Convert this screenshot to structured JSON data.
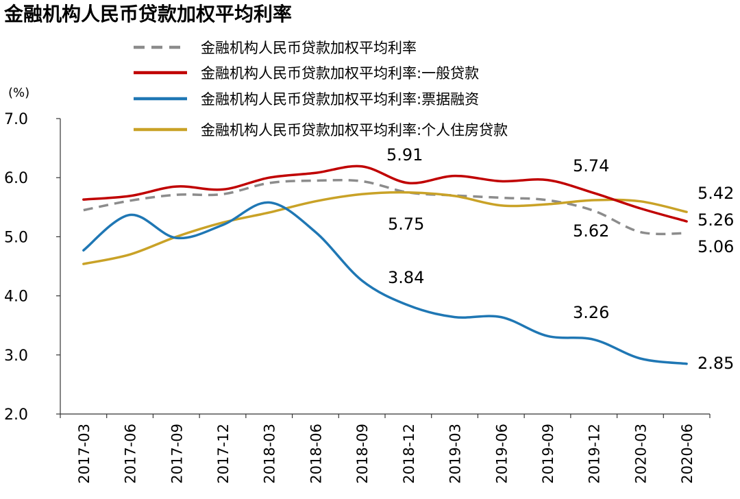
{
  "chart_data": {
    "type": "line",
    "title": "金融机构人民币贷款加权平均利率",
    "unit_label": "(%)",
    "ylim": [
      2.0,
      7.0
    ],
    "y_ticks": [
      "7.0",
      "6.0",
      "5.0",
      "4.0",
      "3.0",
      "2.0"
    ],
    "grid": false,
    "legend_position": "top",
    "categories": [
      "2017-03",
      "2017-06",
      "2017-09",
      "2017-12",
      "2018-03",
      "2018-06",
      "2018-09",
      "2018-12",
      "2019-03",
      "2019-06",
      "2019-09",
      "2019-12",
      "2020-03",
      "2020-06"
    ],
    "series": [
      {
        "name": "金融机构人民币贷款加权平均利率",
        "color": "#8c8c8c",
        "dashed": true,
        "values": [
          5.45,
          5.61,
          5.71,
          5.72,
          5.91,
          5.95,
          5.94,
          5.75,
          5.7,
          5.66,
          5.62,
          5.44,
          5.08,
          5.06
        ]
      },
      {
        "name": "金融机构人民币贷款加权平均利率:一般贷款",
        "color": "#c00000",
        "dashed": false,
        "values": [
          5.63,
          5.69,
          5.85,
          5.8,
          6.0,
          6.08,
          6.19,
          5.91,
          6.03,
          5.94,
          5.96,
          5.74,
          5.48,
          5.26
        ]
      },
      {
        "name": "金融机构人民币贷款加权平均利率:票据融资",
        "color": "#1f77b4",
        "dashed": false,
        "values": [
          4.77,
          5.37,
          4.98,
          5.2,
          5.58,
          5.08,
          4.26,
          3.84,
          3.64,
          3.64,
          3.32,
          3.26,
          2.94,
          2.85
        ]
      },
      {
        "name": "金融机构人民币贷款加权平均利率:个人住房贷款",
        "color": "#c9a227",
        "dashed": false,
        "values": [
          4.54,
          4.7,
          5.0,
          5.24,
          5.41,
          5.6,
          5.72,
          5.75,
          5.69,
          5.53,
          5.55,
          5.62,
          5.6,
          5.42
        ]
      }
    ],
    "annotations": [
      {
        "text": "5.91"
      },
      {
        "text": "5.74"
      },
      {
        "text": "5.75"
      },
      {
        "text": "5.62"
      },
      {
        "text": "5.42"
      },
      {
        "text": "5.26"
      },
      {
        "text": "5.06"
      },
      {
        "text": "3.84"
      },
      {
        "text": "3.26"
      },
      {
        "text": "2.85"
      }
    ]
  }
}
